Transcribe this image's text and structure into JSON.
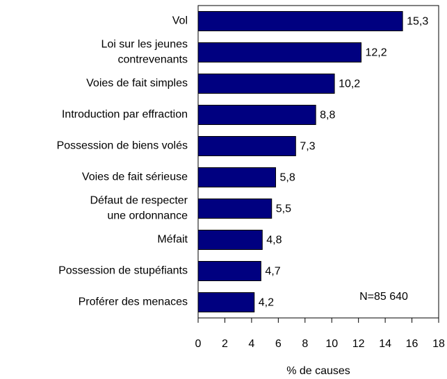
{
  "chart_data": {
    "type": "bar",
    "orientation": "horizontal",
    "categories": [
      "Vol",
      "Loi sur les jeunes\ncontrevenants",
      "Voies de fait simples",
      "Introduction par effraction",
      "Possession de biens volés",
      "Voies de fait sérieuse",
      "Défaut de respecter\nune ordonnance",
      "Méfait",
      "Possession de stupéfiants",
      "Proférer des menaces"
    ],
    "values": [
      15.3,
      12.2,
      10.2,
      8.8,
      7.3,
      5.8,
      5.5,
      4.8,
      4.7,
      4.2
    ],
    "value_labels": [
      "15,3",
      "12,2",
      "10,2",
      "8,8",
      "7,3",
      "5,8",
      "5,5",
      "4,8",
      "4,7",
      "4,2"
    ],
    "color": "#000080",
    "xlim": [
      0,
      18
    ],
    "xticks": [
      0,
      2,
      4,
      6,
      8,
      10,
      12,
      14,
      16,
      18
    ],
    "xlabel": "% de causes",
    "annotation": "N=85 640",
    "grid": false
  }
}
